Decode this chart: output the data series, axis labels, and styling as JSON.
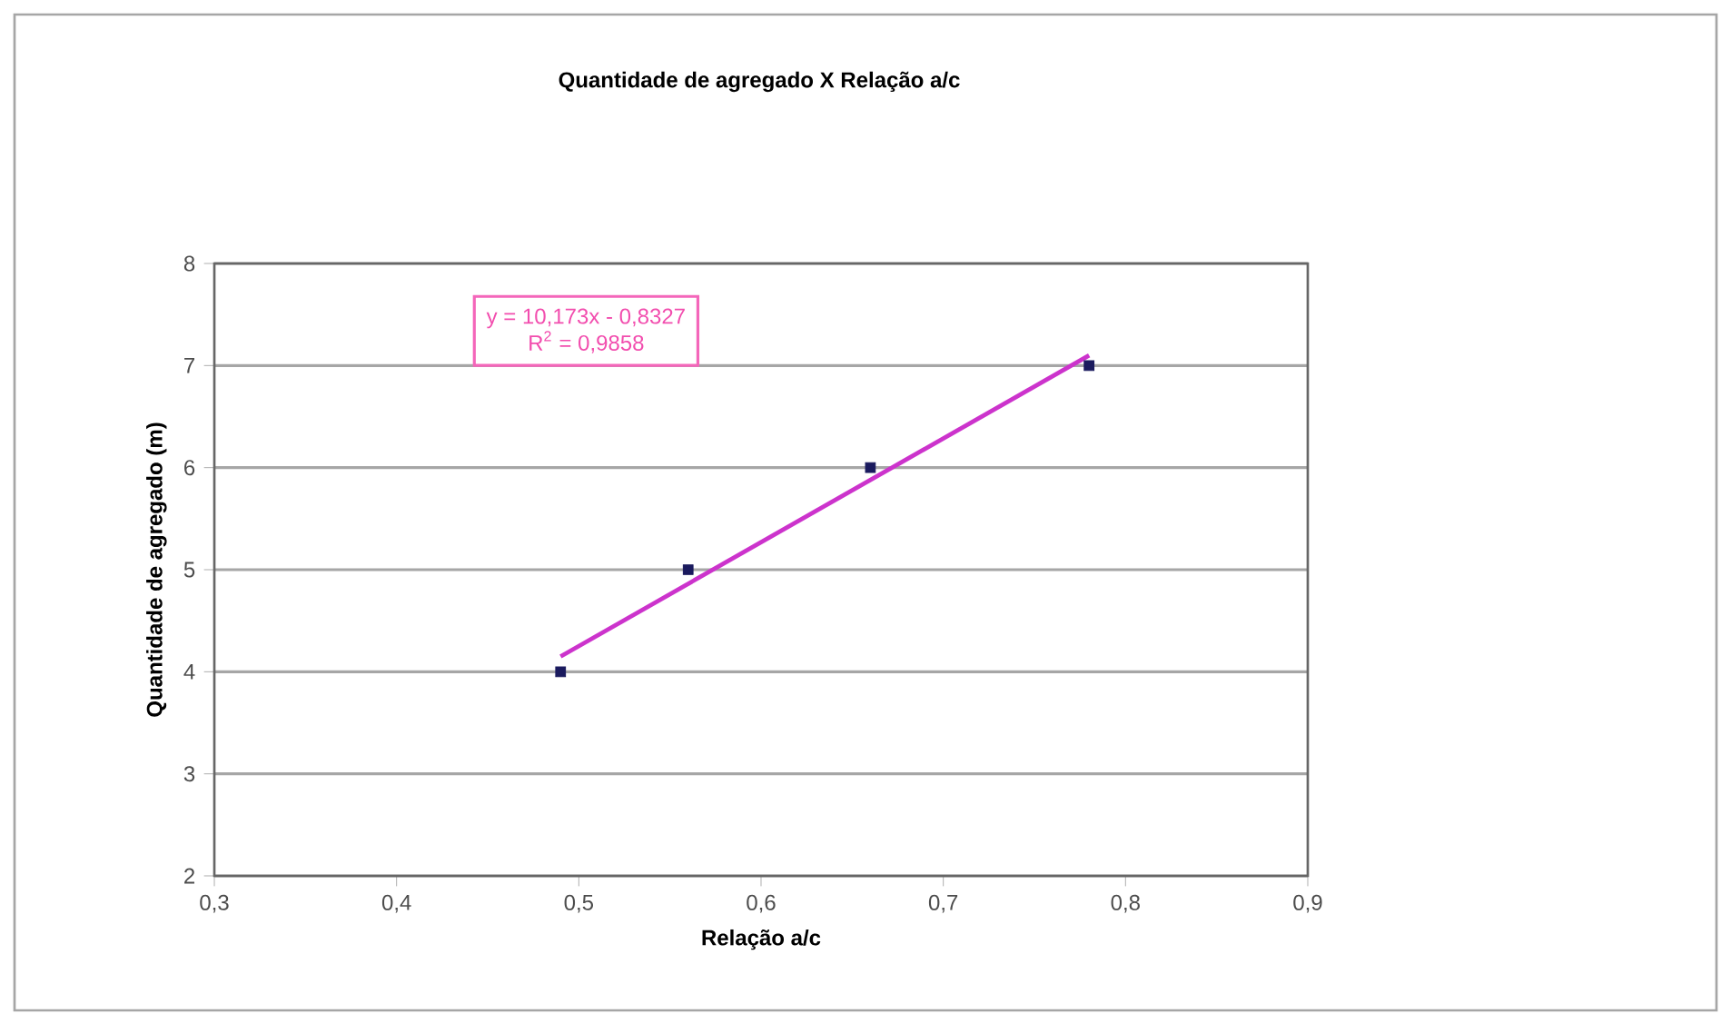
{
  "chart_data": {
    "type": "scatter",
    "title": "Quantidade de agregado X Relação a/c",
    "xlabel": "Relação a/c",
    "ylabel": "Quantidade de agregado (m)",
    "series": [
      {
        "color": "#1a1a5e",
        "x": [
          0.49,
          0.56,
          0.66,
          0.78
        ],
        "values": [
          4,
          5,
          6,
          7
        ],
        "marker": "square"
      },
      {
        "type": "line",
        "color": "#cc33cc",
        "x": [
          0.49,
          0.78
        ],
        "values": [
          4.15,
          7.1
        ],
        "line_style": "solid"
      }
    ],
    "annotations": [
      "y = 10,173x - 0,8327",
      "R$^{2}$ = 0,9858"
    ],
    "xlim": [
      0.3,
      0.9
    ],
    "ylim": [
      2,
      8
    ],
    "xticks": [
      {
        "value": 0.3,
        "label": "0,3"
      },
      {
        "value": 0.4,
        "label": "0,4"
      },
      {
        "value": 0.5,
        "label": "0,5"
      },
      {
        "value": 0.6,
        "label": "0,6"
      },
      {
        "value": 0.7,
        "label": "0,7"
      },
      {
        "value": 0.8,
        "label": "0,8"
      },
      {
        "value": 0.9,
        "label": "0,9"
      }
    ],
    "yticks": [
      2,
      3,
      4,
      5,
      6,
      7,
      8
    ],
    "grid": "y"
  }
}
